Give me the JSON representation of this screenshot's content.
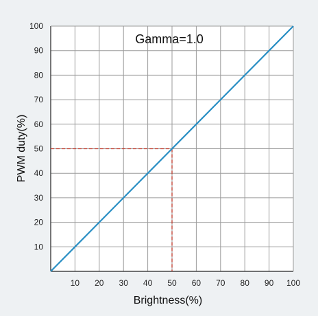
{
  "chart_data": {
    "type": "line",
    "title": "",
    "annotation": "Gamma=1.0",
    "xlabel": "Brightness(%)",
    "ylabel": "PWM duty(%)",
    "xlim": [
      0,
      100
    ],
    "ylim": [
      0,
      100
    ],
    "x_ticks": [
      10,
      20,
      30,
      40,
      50,
      60,
      70,
      80,
      90,
      100
    ],
    "y_ticks": [
      10,
      20,
      30,
      40,
      50,
      60,
      70,
      80,
      90,
      100
    ],
    "grid": true,
    "series": [
      {
        "x": [
          0,
          10,
          20,
          30,
          40,
          50,
          60,
          70,
          80,
          90,
          100
        ],
        "y": [
          0,
          10,
          20,
          30,
          40,
          50,
          60,
          70,
          80,
          90,
          100
        ],
        "color": "#2a8fc4"
      }
    ],
    "reference_point": {
      "x": 50,
      "y": 50,
      "color": "#c0392b",
      "style": "dashed"
    },
    "colors": {
      "background": "#eef1f3",
      "plot_background": "#ffffff",
      "grid": "#9a9a9a",
      "axis": "#222222"
    }
  }
}
